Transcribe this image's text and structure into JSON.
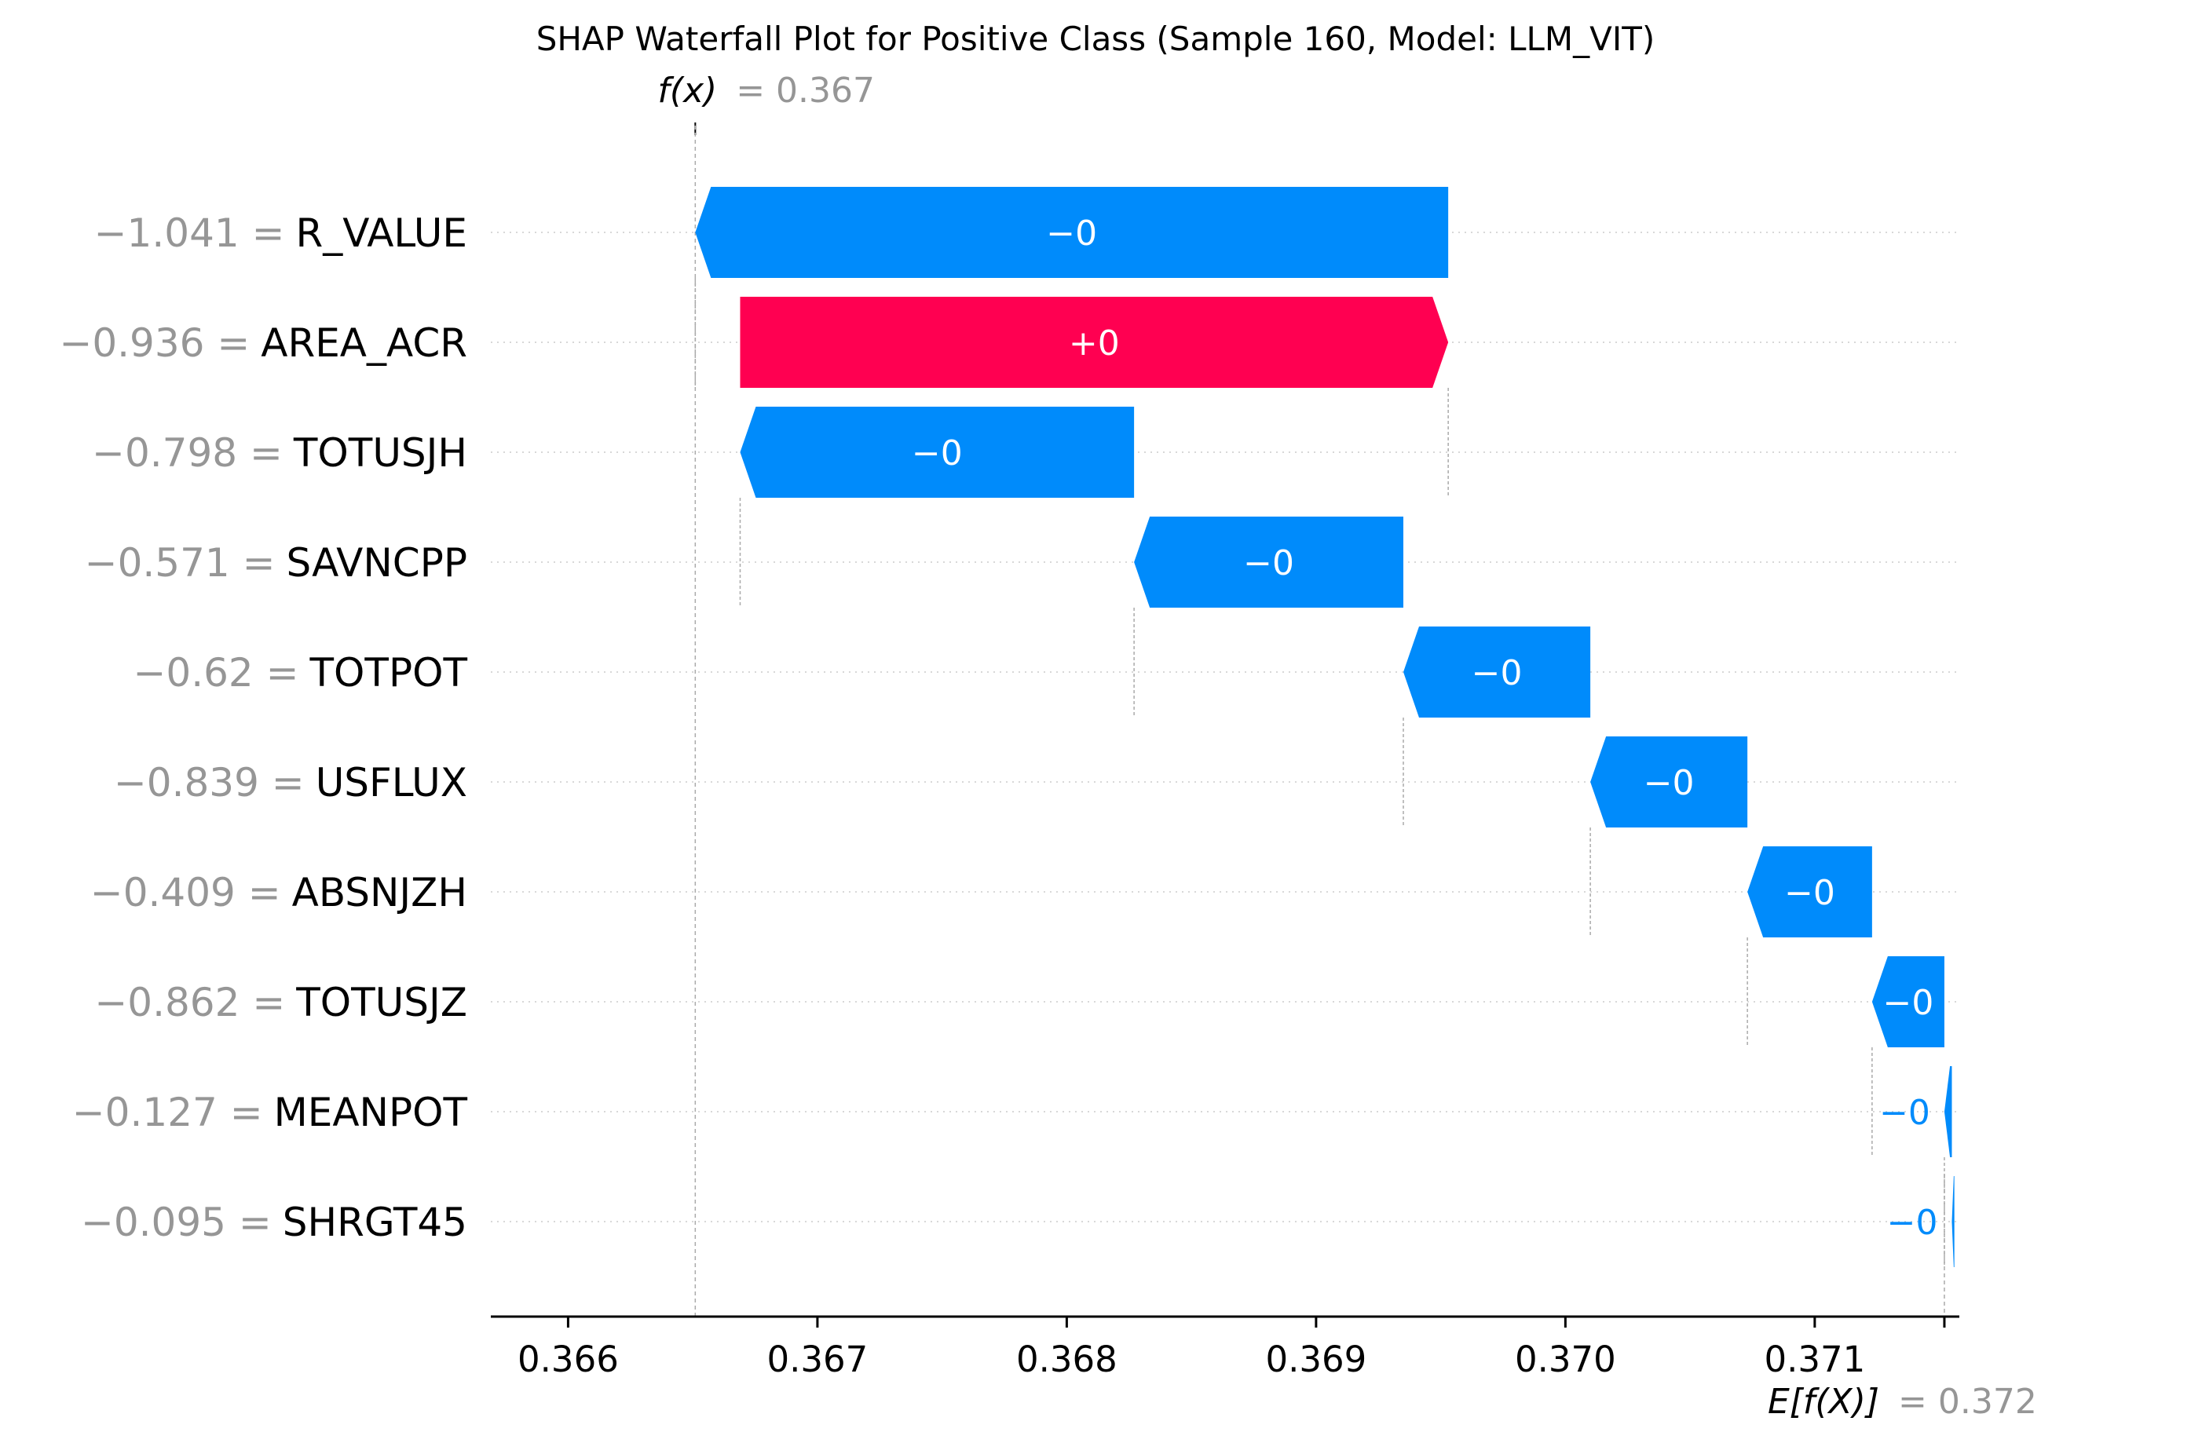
{
  "chart_data": {
    "type": "waterfall",
    "title": "SHAP Waterfall Plot for Positive Class (Sample 160, Model: LLM_VIT)",
    "fx": {
      "label": "f(x)",
      "value_text": "= 0.367",
      "value": 0.36651
    },
    "efx": {
      "label": "E[f(X)]",
      "value_text": "= 0.372",
      "value": 0.37152
    },
    "xlim": [
      0.36569,
      0.37158
    ],
    "xticks": [
      0.366,
      0.367,
      0.368,
      0.369,
      0.37,
      0.371
    ],
    "xtick_labels": [
      "0.366",
      "0.367",
      "0.368",
      "0.369",
      "0.370",
      "0.371"
    ],
    "features": [
      {
        "value_text": "−1.041 =",
        "name": "R_VALUE",
        "start": 0.36953,
        "end": 0.36651,
        "label": "−0",
        "label_inside": true
      },
      {
        "value_text": "−0.936 =",
        "name": "AREA_ACR",
        "start": 0.36669,
        "end": 0.36953,
        "label": "+0",
        "label_inside": true
      },
      {
        "value_text": "−0.798 =",
        "name": "TOTUSJH",
        "start": 0.36827,
        "end": 0.36669,
        "label": "−0",
        "label_inside": true
      },
      {
        "value_text": "−0.571 =",
        "name": "SAVNCPP",
        "start": 0.36935,
        "end": 0.36827,
        "label": "−0",
        "label_inside": true
      },
      {
        "value_text": "−0.62 =",
        "name": "TOTPOT",
        "start": 0.3701,
        "end": 0.36935,
        "label": "−0",
        "label_inside": true
      },
      {
        "value_text": "−0.839 =",
        "name": "USFLUX",
        "start": 0.37073,
        "end": 0.3701,
        "label": "−0",
        "label_inside": true
      },
      {
        "value_text": "−0.409 =",
        "name": "ABSNJZH",
        "start": 0.37123,
        "end": 0.37073,
        "label": "−0",
        "label_inside": true
      },
      {
        "value_text": "−0.862 =",
        "name": "TOTUSJZ",
        "start": 0.37152,
        "end": 0.37123,
        "label": "−0",
        "label_inside": true
      },
      {
        "value_text": "−0.127 =",
        "name": "MEANPOT",
        "start": 0.37155,
        "end": 0.37152,
        "label": "−0",
        "label_inside": false
      },
      {
        "value_text": "−0.095 =",
        "name": "SHRGT45",
        "start": 0.37156,
        "end": 0.37155,
        "label": "−0",
        "label_inside": false
      }
    ],
    "colors": {
      "positive": "#ff0051",
      "negative": "#008bfb",
      "muted": "#969696",
      "text_on_bar": "#ffffff"
    }
  }
}
